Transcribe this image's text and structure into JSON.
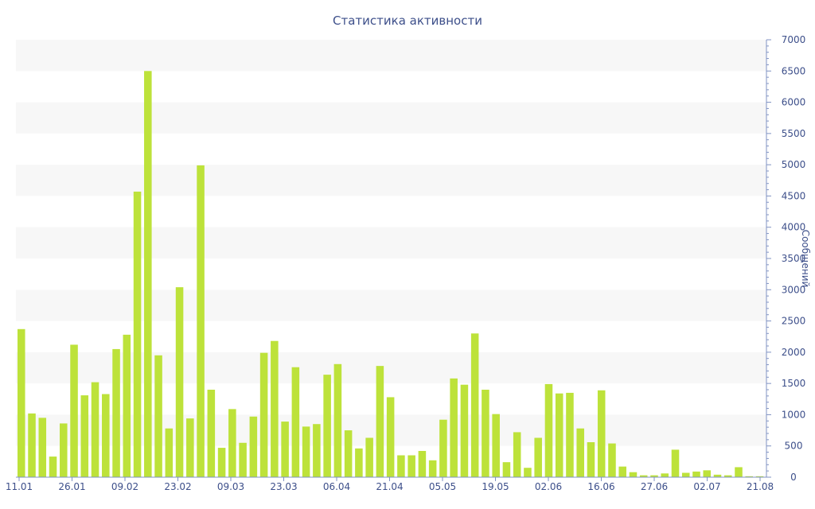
{
  "colors": {
    "bar": "#bde23a",
    "band": "#f7f7f7",
    "axis": "#8093c3",
    "text": "#3d4f8a"
  },
  "chart_data": {
    "type": "bar",
    "title": "Статистика активности",
    "ylabel": "Сообщений",
    "xlabel": "",
    "ylim": [
      0,
      7000
    ],
    "y_axis_position": "right",
    "y_ticks": [
      0,
      500,
      1000,
      1500,
      2000,
      2500,
      3000,
      3500,
      4000,
      4500,
      5000,
      5500,
      6000,
      6500,
      7000
    ],
    "x_tick_labels": [
      "11.01",
      "26.01",
      "09.02",
      "23.02",
      "09.03",
      "23.03",
      "06.04",
      "21.04",
      "05.05",
      "19.05",
      "02.06",
      "16.06",
      "27.06",
      "02.07",
      "21.08"
    ],
    "grid": "alternating horizontal bands",
    "values": [
      2370,
      1020,
      950,
      330,
      860,
      2120,
      1310,
      1520,
      1330,
      2050,
      2280,
      4570,
      6500,
      1950,
      780,
      3040,
      940,
      4990,
      1400,
      470,
      1090,
      550,
      970,
      1990,
      2180,
      890,
      1760,
      810,
      850,
      1640,
      1810,
      750,
      460,
      630,
      1780,
      1280,
      350,
      350,
      420,
      270,
      920,
      1580,
      1480,
      2300,
      1400,
      1010,
      240,
      720,
      150,
      630,
      1490,
      1340,
      1350,
      780,
      560,
      1390,
      540,
      170,
      80,
      30,
      30,
      60,
      440,
      70,
      90,
      110,
      40,
      30,
      160,
      15,
      15
    ]
  }
}
